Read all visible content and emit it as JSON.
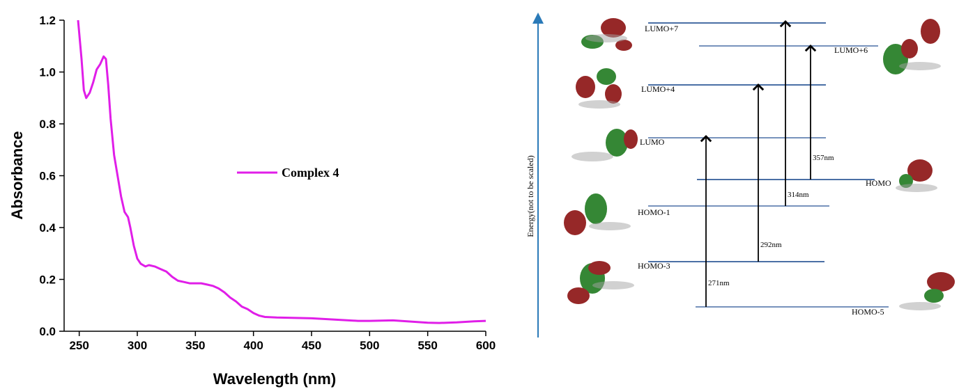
{
  "chart_data": {
    "type": "line",
    "x_label": "Wavelength (nm)",
    "y_label": "Absorbance",
    "x": [
      249,
      252,
      254,
      256,
      259,
      262,
      265,
      268,
      271,
      273,
      275,
      277,
      280,
      283,
      286,
      289,
      292,
      294,
      297,
      300,
      303,
      307,
      310,
      315,
      320,
      325,
      330,
      335,
      340,
      345,
      350,
      355,
      360,
      365,
      370,
      375,
      380,
      385,
      390,
      395,
      400,
      405,
      410,
      420,
      430,
      450,
      470,
      490,
      500,
      520,
      540,
      550,
      560,
      575,
      590,
      600
    ],
    "series": [
      {
        "name": "Complex 4",
        "color": "#e01ee8",
        "values": [
          1.2,
          1.05,
          0.93,
          0.9,
          0.92,
          0.96,
          1.01,
          1.03,
          1.06,
          1.05,
          0.95,
          0.82,
          0.68,
          0.6,
          0.52,
          0.46,
          0.44,
          0.4,
          0.33,
          0.28,
          0.26,
          0.25,
          0.255,
          0.25,
          0.24,
          0.23,
          0.21,
          0.195,
          0.19,
          0.185,
          0.185,
          0.185,
          0.18,
          0.175,
          0.165,
          0.15,
          0.13,
          0.115,
          0.095,
          0.085,
          0.07,
          0.06,
          0.055,
          0.053,
          0.052,
          0.05,
          0.045,
          0.04,
          0.04,
          0.042,
          0.036,
          0.033,
          0.032,
          0.034,
          0.038,
          0.04
        ]
      }
    ],
    "xlim": [
      237,
      600
    ],
    "xticks": [
      250,
      300,
      350,
      400,
      450,
      500,
      550,
      600
    ],
    "ylim": [
      0,
      1.2
    ],
    "yticks": [
      {
        "value": 0,
        "label": "0.0"
      },
      0.2,
      0.4,
      0.6,
      0.8,
      {
        "value": 1,
        "label": "1.0"
      },
      1.2
    ],
    "legend": "center",
    "grid": false
  },
  "diagram": {
    "axis_label": "Energy(not to be scaled)",
    "levels": [
      {
        "label": "LUMO+7"
      },
      {
        "label": "LUMO+6"
      },
      {
        "label": "LUMO+4"
      },
      {
        "label": "LUMO"
      },
      {
        "label": "HOMO"
      },
      {
        "label": "HOMO-1"
      },
      {
        "label": "HOMO-3"
      },
      {
        "label": "HOMO-5"
      }
    ],
    "transitions": [
      {
        "label": "271nm"
      },
      {
        "label": "292nm"
      },
      {
        "label": "314nm"
      },
      {
        "label": "357nm"
      }
    ]
  }
}
